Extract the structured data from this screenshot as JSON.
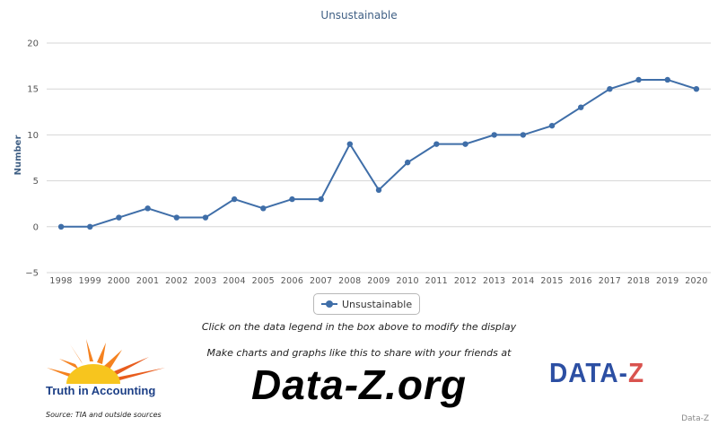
{
  "chart_data": {
    "type": "line",
    "title": "Unsustainable",
    "xlabel": "",
    "ylabel": "Number",
    "ylim": [
      -5,
      20
    ],
    "yticks": [
      20,
      15,
      10,
      5,
      0,
      -5
    ],
    "x": [
      "1998",
      "1999",
      "2000",
      "2001",
      "2002",
      "2003",
      "2004",
      "2005",
      "2006",
      "2007",
      "2008",
      "2009",
      "2010",
      "2011",
      "2012",
      "2013",
      "2014",
      "2015",
      "2016",
      "2017",
      "2018",
      "2019",
      "2020"
    ],
    "series": [
      {
        "name": "Unsustainable",
        "values": [
          0,
          0,
          1,
          2,
          1,
          1,
          3,
          2,
          3,
          3,
          9,
          4,
          7,
          9,
          9,
          10,
          10,
          11,
          13,
          15,
          16,
          16,
          15
        ]
      }
    ],
    "grid": true,
    "legend_position": "bottom-center",
    "color": "#3f6ea8"
  },
  "legend": {
    "label": "Unsustainable"
  },
  "instruction_text": "Click on the data legend in the box above to modify the display",
  "promo_text": "Make charts and graphs like this to share with your friends at",
  "site_name": "Data-Z.org",
  "tia_logo_text": "Truth in Accounting",
  "source_text": "Source: TIA and outside sources",
  "dataz_logo": {
    "main": "DATA-",
    "accent": "Z"
  },
  "credit_text": "Data-Z"
}
